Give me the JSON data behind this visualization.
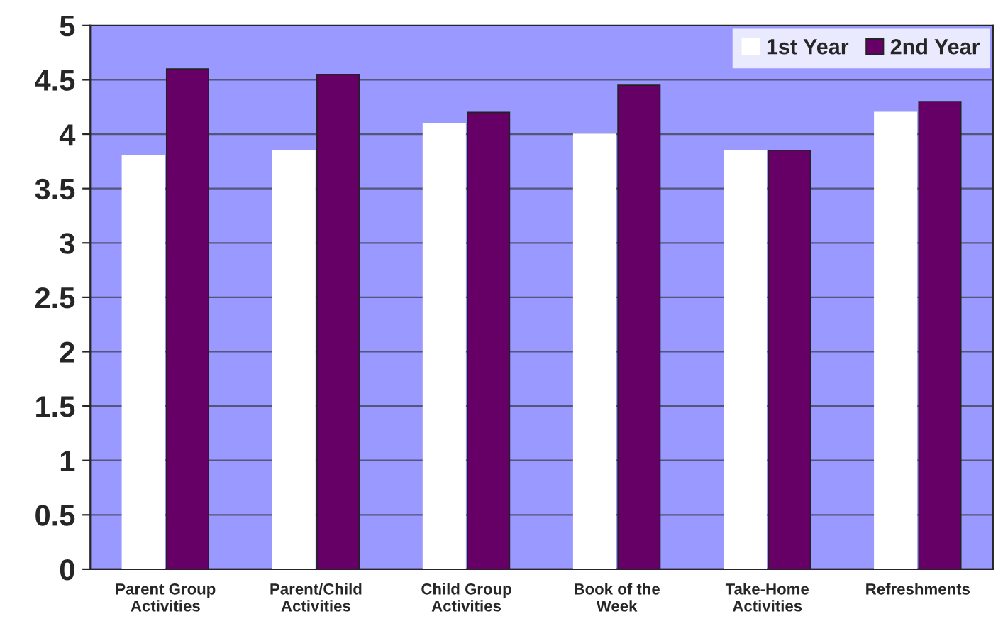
{
  "chart_data": {
    "type": "bar",
    "categories": [
      "Parent Group\nActivities",
      "Parent/Child\nActivities",
      "Child Group\nActivities",
      "Book of the\nWeek",
      "Take-Home\nActivities",
      "Refreshments"
    ],
    "series": [
      {
        "name": "1st Year",
        "color": "#ffffff",
        "values": [
          3.8,
          3.85,
          4.1,
          4.0,
          3.85,
          4.2
        ]
      },
      {
        "name": "2nd Year",
        "color": "#660066",
        "values": [
          4.6,
          4.55,
          4.2,
          4.45,
          3.85,
          4.3
        ]
      }
    ],
    "ylim": [
      0,
      5
    ],
    "yticks": [
      0,
      0.5,
      1,
      1.5,
      2,
      2.5,
      3,
      3.5,
      4,
      4.5,
      5
    ],
    "grid": "y",
    "legend": "top right"
  }
}
